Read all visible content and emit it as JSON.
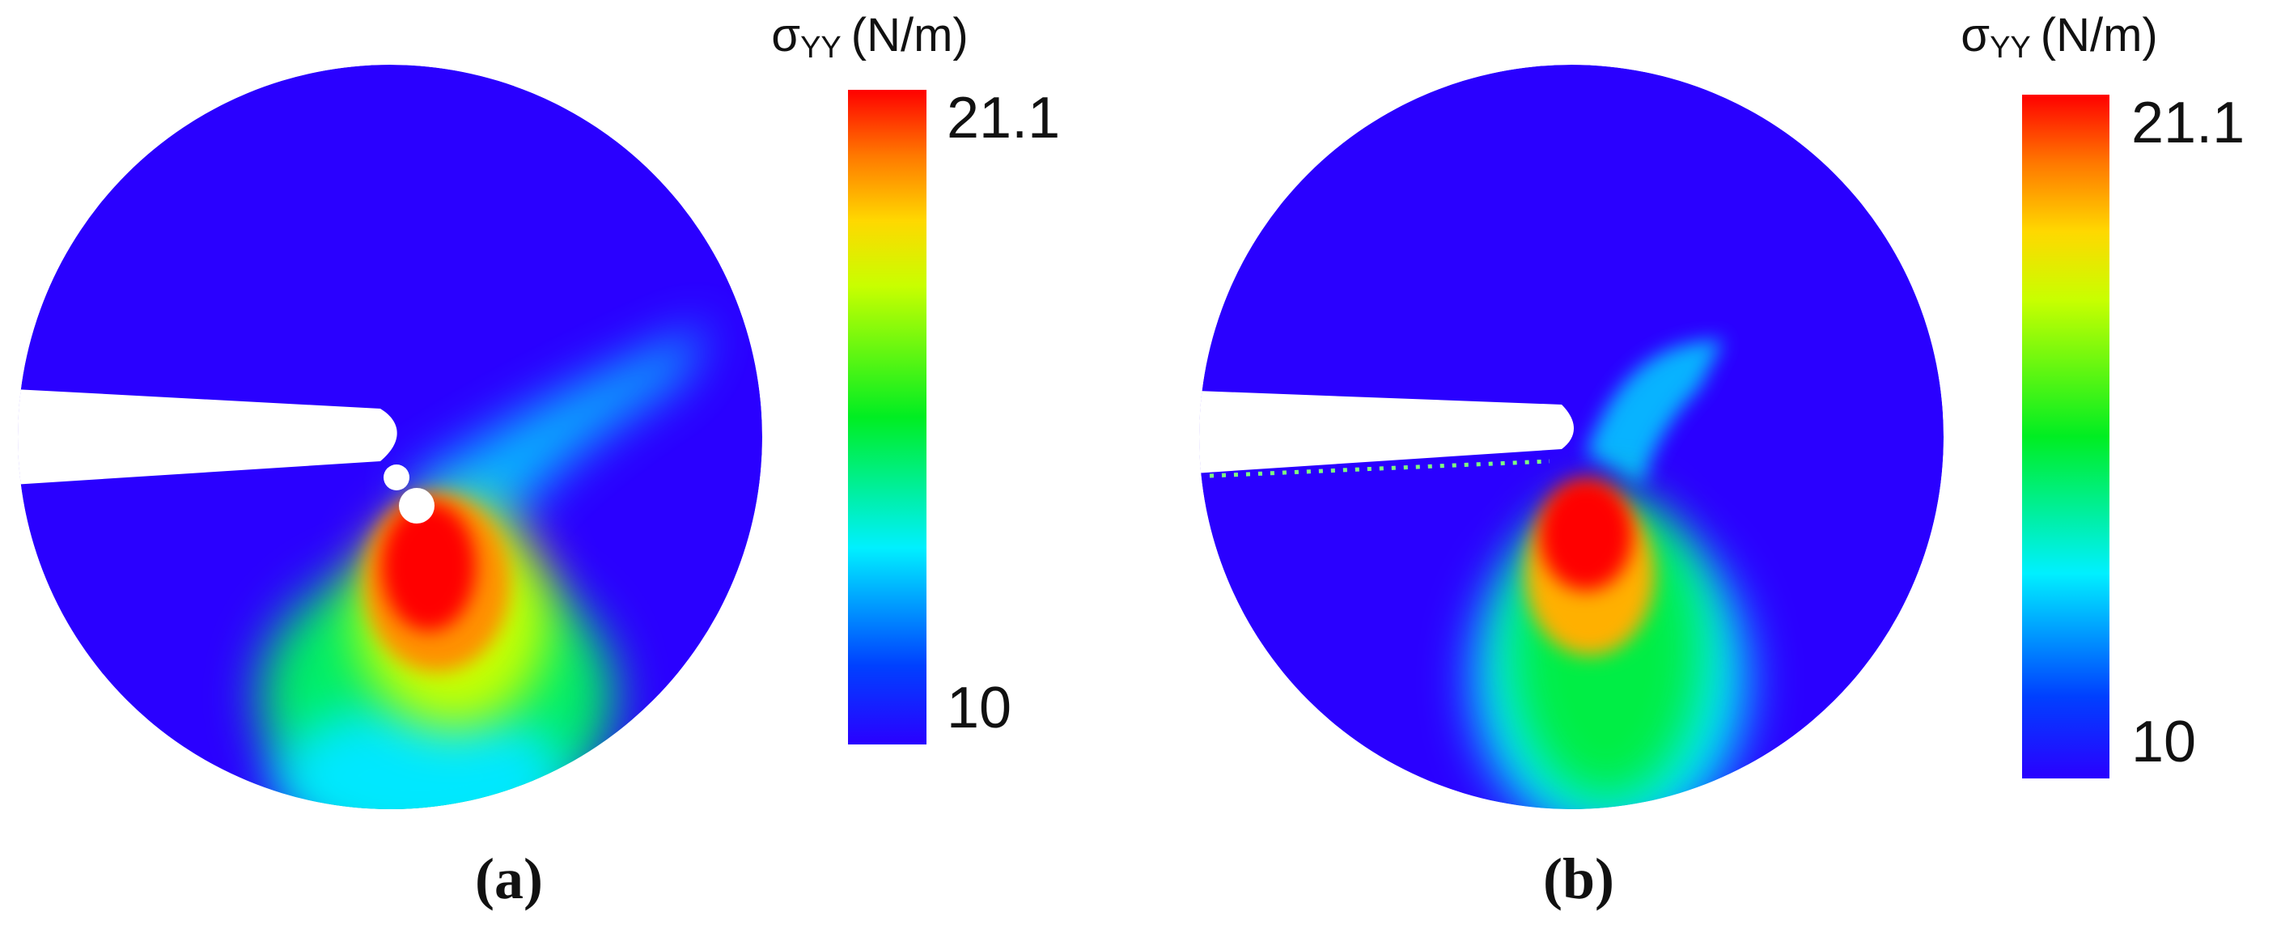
{
  "panels": [
    {
      "caption": "(a)",
      "colorbar": {
        "symbol": "σ",
        "subscript": "YY",
        "unit": "(N/m)",
        "max": 21.1,
        "min": 10
      }
    },
    {
      "caption": "(b)",
      "colorbar": {
        "symbol": "σ",
        "subscript": "YY",
        "unit": "(N/m)",
        "max": 21.1,
        "min": 10
      }
    }
  ]
}
